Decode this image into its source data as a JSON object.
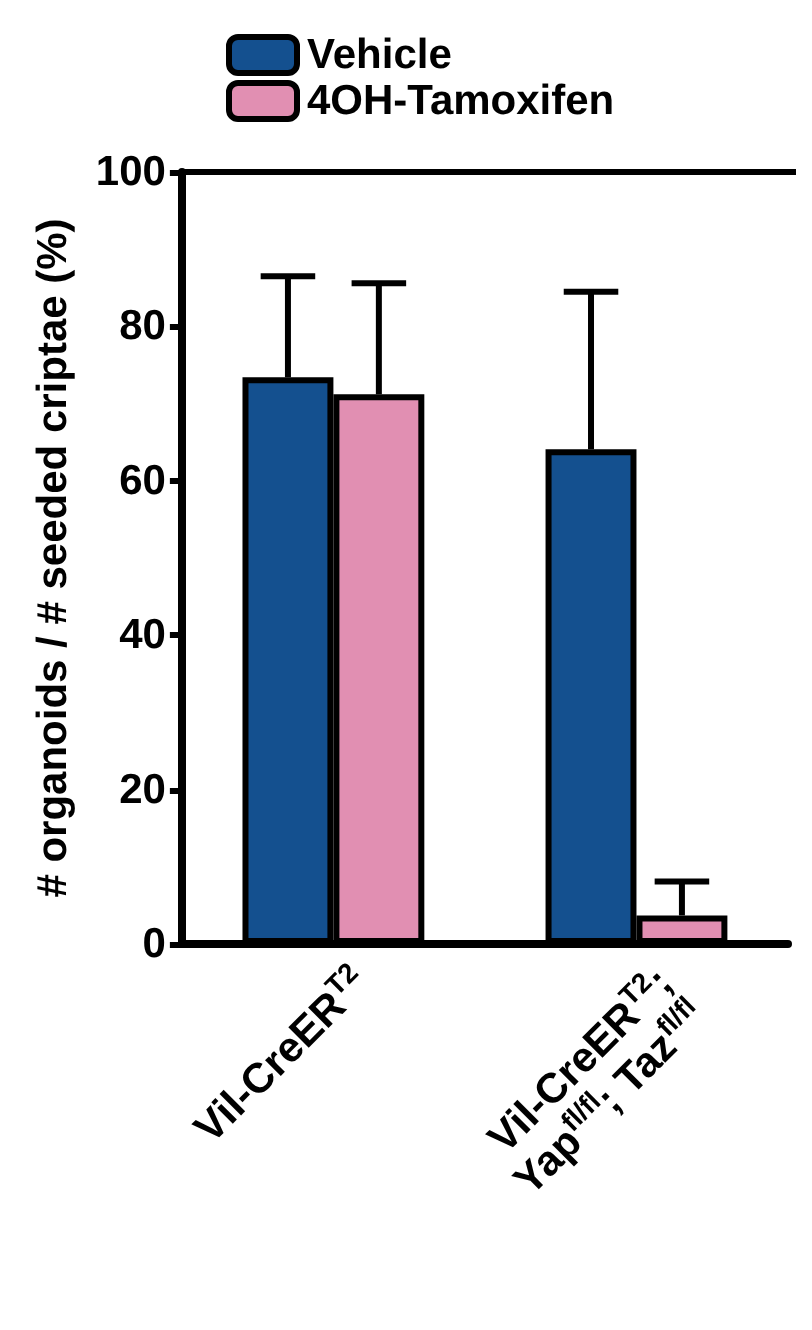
{
  "chart_data": {
    "type": "bar",
    "ylabel": "# organoids / # seeded criptae (%)",
    "categories": [
      "Vil-CreER$^{T2}$",
      "Vil-CreER$^{T2}$;\nYap$^{fl/fl}$; Taz$^{fl/fl}$"
    ],
    "series": [
      {
        "name": "Vehicle",
        "color": "#14508f",
        "values": [
          73.4,
          64.1
        ],
        "errors": [
          13.1,
          20.4
        ]
      },
      {
        "name": "4OH-Tamoxifen",
        "color": "#e18fb2",
        "values": [
          71.2,
          3.7
        ],
        "errors": [
          14.4,
          4.4
        ]
      }
    ],
    "ylim": [
      0,
      100
    ],
    "yticks": [
      0,
      20,
      40,
      60,
      80,
      100
    ],
    "grid": false,
    "legend": "top left"
  }
}
